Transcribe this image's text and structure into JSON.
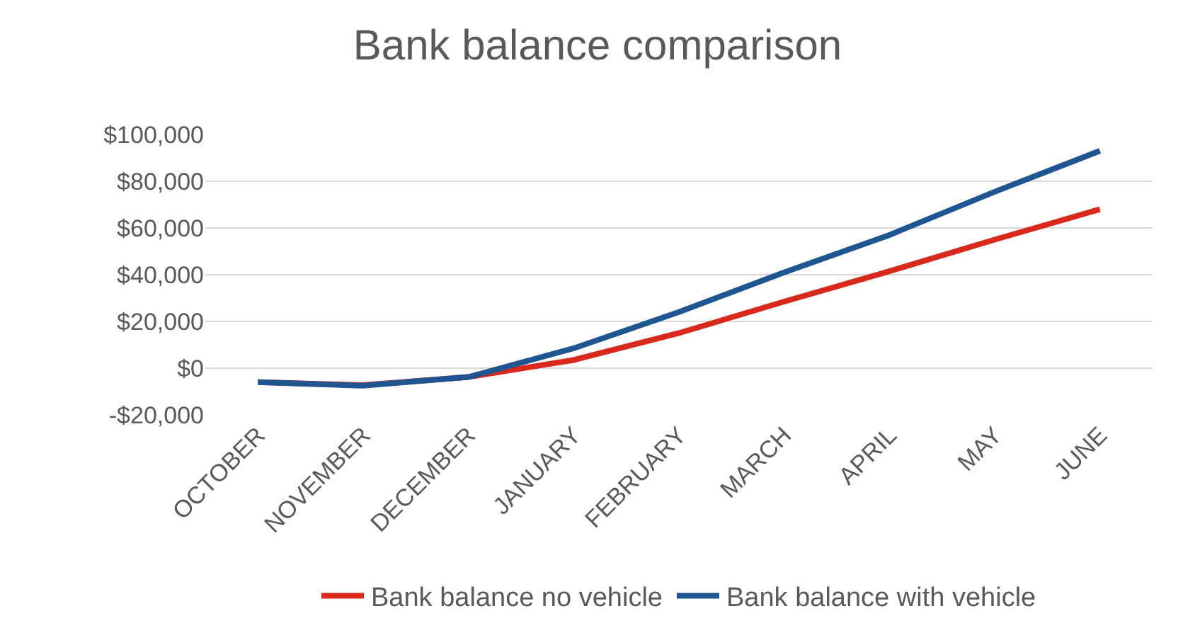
{
  "chart_data": {
    "type": "line",
    "title": "Bank balance comparison",
    "categories": [
      "OCTOBER",
      "NOVEMBER",
      "DECEMBER",
      "JANUARY",
      "FEBRUARY",
      "MARCH",
      "APRIL",
      "MAY",
      "JUNE"
    ],
    "series": [
      {
        "name": "Bank balance no vehicle",
        "color": "#d9291c",
        "values": [
          -6000,
          -7300,
          -3800,
          3500,
          15000,
          28500,
          41500,
          55000,
          68000
        ]
      },
      {
        "name": "Bank balance with vehicle",
        "color": "#1f5590",
        "values": [
          -6000,
          -7500,
          -3800,
          8500,
          24000,
          41000,
          57000,
          75500,
          93000
        ]
      }
    ],
    "ylim": [
      -20000,
      100000
    ],
    "yticks": [
      {
        "value": -20000,
        "label": "-$20,000"
      },
      {
        "value": 0,
        "label": "$0"
      },
      {
        "value": 20000,
        "label": "$20,000"
      },
      {
        "value": 40000,
        "label": "$40,000"
      },
      {
        "value": 60000,
        "label": "$60,000"
      },
      {
        "value": 80000,
        "label": "$80,000"
      },
      {
        "value": 100000,
        "label": "$100,000"
      }
    ],
    "grid": "y",
    "legend": "bottom",
    "marker": "none",
    "line_style": "solid"
  }
}
